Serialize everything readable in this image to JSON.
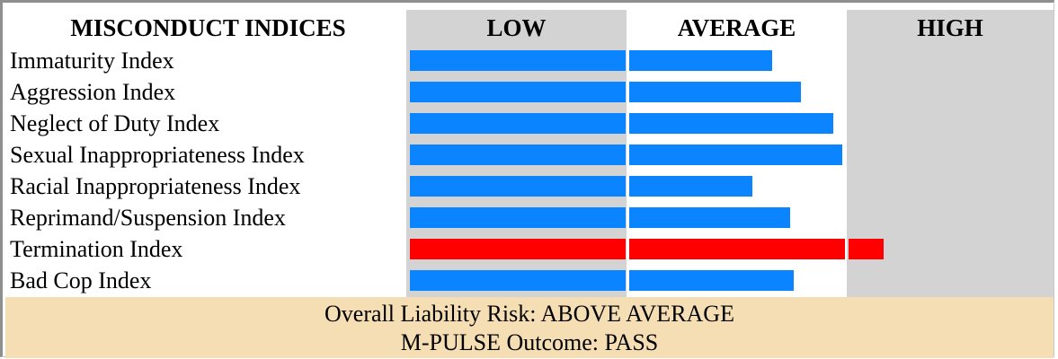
{
  "header": {
    "title": "MISCONDUCT INDICES",
    "low": "LOW",
    "average": "AVERAGE",
    "high": "HIGH"
  },
  "chart_data": {
    "type": "bar",
    "orientation": "horizontal",
    "categories": [
      "Immaturity Index",
      "Aggression Index",
      "Neglect of Duty Index",
      "Sexual Inappropriateness Index",
      "Racial Inappropriateness Index",
      "Reprimand/Suspension Index",
      "Termination Index",
      "Bad Cop Index"
    ],
    "values": [
      1.66,
      1.79,
      1.94,
      1.98,
      1.57,
      1.74,
      2.17,
      1.76
    ],
    "bands": [
      "LOW",
      "AVERAGE",
      "HIGH"
    ],
    "xlim": [
      0,
      3
    ],
    "colors": [
      "#0a84ff",
      "#0a84ff",
      "#0a84ff",
      "#0a84ff",
      "#0a84ff",
      "#0a84ff",
      "#ff0000",
      "#0a84ff"
    ],
    "band_colors": [
      "#d3d3d3",
      "#ffffff",
      "#d3d3d3"
    ]
  },
  "footer": {
    "risk": "Overall Liability Risk: ABOVE AVERAGE",
    "outcome": "M-PULSE Outcome: PASS"
  }
}
